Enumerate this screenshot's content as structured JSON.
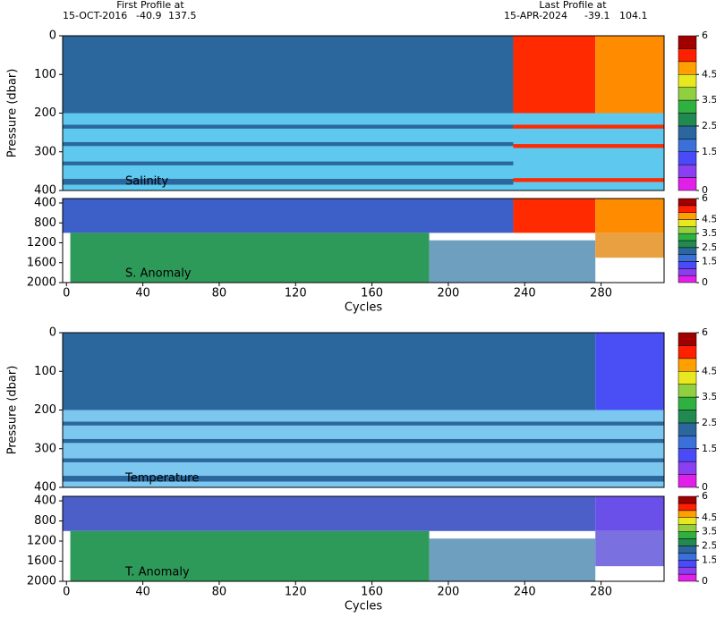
{
  "header": {
    "first": {
      "label": "First Profile at",
      "date": "15-OCT-2016",
      "lat": -40.9,
      "lon": 137.5
    },
    "last": {
      "label": "Last Profile at",
      "date": "15-APR-2024",
      "lat": -39.1,
      "lon": 104.1
    }
  },
  "chart_data": [
    {
      "type": "heatmap",
      "label": "Salinity",
      "ylabel": "Pressure (dbar)",
      "xlim": [
        -2,
        313
      ],
      "ylim": [
        400,
        0
      ],
      "yticks": [
        0,
        100,
        200,
        300,
        400
      ],
      "colorbar": {
        "lim": [
          0,
          6
        ],
        "ticks": [
          0,
          1.5,
          2.5,
          3.5,
          4.5,
          6
        ],
        "colors": [
          "#e020e8",
          "#8a40f0",
          "#4a4af8",
          "#3a70d8",
          "#2b679c",
          "#208a50",
          "#30b040",
          "#90d040",
          "#e8e820",
          "#ffa000",
          "#ff2000",
          "#a00000"
        ]
      },
      "regions": [
        {
          "x": [
            -2,
            234
          ],
          "y": [
            0,
            200
          ],
          "value": 1.8,
          "color": "#2b679c"
        },
        {
          "x": [
            234,
            277
          ],
          "y": [
            0,
            200
          ],
          "value": 5,
          "color": "#ff2a00"
        },
        {
          "x": [
            277,
            313
          ],
          "y": [
            0,
            200
          ],
          "value": 4.5,
          "color": "#ff8c00"
        },
        {
          "x": [
            -2,
            313
          ],
          "y": [
            200,
            400
          ],
          "value": 1.6,
          "color": "#5ec8ef"
        },
        {
          "x": [
            -2,
            234
          ],
          "y": [
            230,
            240
          ],
          "value": 1.8,
          "color": "#2b679c"
        },
        {
          "x": [
            -2,
            234
          ],
          "y": [
            275,
            285
          ],
          "value": 1.8,
          "color": "#2b679c"
        },
        {
          "x": [
            -2,
            234
          ],
          "y": [
            325,
            335
          ],
          "value": 1.8,
          "color": "#2b679c"
        },
        {
          "x": [
            -2,
            234
          ],
          "y": [
            370,
            385
          ],
          "value": 1.8,
          "color": "#2b679c"
        },
        {
          "x": [
            234,
            313
          ],
          "y": [
            230,
            240
          ],
          "value": 5,
          "color": "#ff2a00"
        },
        {
          "x": [
            234,
            313
          ],
          "y": [
            280,
            290
          ],
          "value": 5,
          "color": "#ff2a00"
        },
        {
          "x": [
            234,
            313
          ],
          "y": [
            368,
            378
          ],
          "value": 5,
          "color": "#ff2a00"
        }
      ]
    },
    {
      "type": "heatmap",
      "label": "S. Anomaly",
      "xlabel": "Cycles",
      "xlim": [
        -2,
        313
      ],
      "ylim": [
        2000,
        310
      ],
      "yticks": [
        400,
        800,
        1200,
        1600,
        2000
      ],
      "xticks": [
        0,
        40,
        80,
        120,
        160,
        200,
        240,
        280
      ],
      "colorbar": {
        "lim": [
          0,
          6
        ],
        "ticks": [
          0,
          1.5,
          2.5,
          3.5,
          4.5,
          6
        ],
        "colors": [
          "#e020e8",
          "#8a40f0",
          "#4a4af8",
          "#3a70d8",
          "#2b679c",
          "#208a50",
          "#30b040",
          "#90d040",
          "#e8e820",
          "#ffa000",
          "#ff2000",
          "#a00000"
        ]
      },
      "regions": [
        {
          "x": [
            -2,
            234
          ],
          "y": [
            310,
            1000
          ],
          "value": 1.3,
          "color": "#3d5fc8"
        },
        {
          "x": [
            234,
            277
          ],
          "y": [
            310,
            1000
          ],
          "value": 5,
          "color": "#ff2a00"
        },
        {
          "x": [
            277,
            313
          ],
          "y": [
            310,
            1000
          ],
          "value": 4.5,
          "color": "#ff8c00"
        },
        {
          "x": [
            2,
            190
          ],
          "y": [
            1000,
            2000
          ],
          "value": 2.3,
          "color": "#2e9a5a"
        },
        {
          "x": [
            190,
            277
          ],
          "y": [
            1150,
            2000
          ],
          "value": 1.8,
          "color": "#6f9fbf"
        },
        {
          "x": [
            277,
            313
          ],
          "y": [
            1000,
            1500
          ],
          "value": 4.5,
          "color": "#e8a040"
        }
      ]
    },
    {
      "type": "heatmap",
      "label": "Temperature",
      "ylabel": "Pressure (dbar)",
      "xlim": [
        -2,
        313
      ],
      "ylim": [
        400,
        0
      ],
      "yticks": [
        0,
        100,
        200,
        300,
        400
      ],
      "colorbar": {
        "lim": [
          0,
          6
        ],
        "ticks": [
          0,
          1.5,
          2.5,
          3.5,
          4.5,
          6
        ],
        "colors": [
          "#e020e8",
          "#8a40f0",
          "#4a4af8",
          "#3a70d8",
          "#2b679c",
          "#208a50",
          "#30b040",
          "#90d040",
          "#e8e820",
          "#ffa000",
          "#ff2000",
          "#a00000"
        ]
      },
      "regions": [
        {
          "x": [
            -2,
            277
          ],
          "y": [
            0,
            200
          ],
          "value": 1.8,
          "color": "#2b679c"
        },
        {
          "x": [
            277,
            313
          ],
          "y": [
            0,
            200
          ],
          "value": 1.2,
          "color": "#4a4ef5"
        },
        {
          "x": [
            -2,
            313
          ],
          "y": [
            200,
            400
          ],
          "value": 1.6,
          "color": "#7cc7ef"
        },
        {
          "x": [
            -2,
            313
          ],
          "y": [
            230,
            240
          ],
          "value": 1.8,
          "color": "#2b679c"
        },
        {
          "x": [
            -2,
            313
          ],
          "y": [
            275,
            285
          ],
          "value": 1.8,
          "color": "#2b679c"
        },
        {
          "x": [
            -2,
            313
          ],
          "y": [
            325,
            335
          ],
          "value": 1.8,
          "color": "#2b679c"
        },
        {
          "x": [
            -2,
            313
          ],
          "y": [
            370,
            385
          ],
          "value": 1.8,
          "color": "#2b679c"
        }
      ]
    },
    {
      "type": "heatmap",
      "label": "T. Anomaly",
      "xlabel": "Cycles",
      "xlim": [
        -2,
        313
      ],
      "ylim": [
        2000,
        310
      ],
      "yticks": [
        400,
        800,
        1200,
        1600,
        2000
      ],
      "xticks": [
        0,
        40,
        80,
        120,
        160,
        200,
        240,
        280
      ],
      "colorbar": {
        "lim": [
          0,
          6
        ],
        "ticks": [
          0,
          1.5,
          2.5,
          3.5,
          4.5,
          6
        ],
        "colors": [
          "#e020e8",
          "#8a40f0",
          "#4a4af8",
          "#3a70d8",
          "#2b679c",
          "#208a50",
          "#30b040",
          "#90d040",
          "#e8e820",
          "#ffa000",
          "#ff2000",
          "#a00000"
        ]
      },
      "regions": [
        {
          "x": [
            -2,
            277
          ],
          "y": [
            310,
            1000
          ],
          "value": 1.3,
          "color": "#4c5fc8"
        },
        {
          "x": [
            277,
            313
          ],
          "y": [
            310,
            1000
          ],
          "value": 1.0,
          "color": "#6a50e8"
        },
        {
          "x": [
            2,
            190
          ],
          "y": [
            1000,
            2000
          ],
          "value": 2.3,
          "color": "#2e9a5a"
        },
        {
          "x": [
            190,
            277
          ],
          "y": [
            1150,
            2000
          ],
          "value": 1.8,
          "color": "#6f9fbf"
        },
        {
          "x": [
            277,
            313
          ],
          "y": [
            1000,
            1700
          ],
          "value": 1.0,
          "color": "#7a70e0"
        }
      ]
    }
  ]
}
